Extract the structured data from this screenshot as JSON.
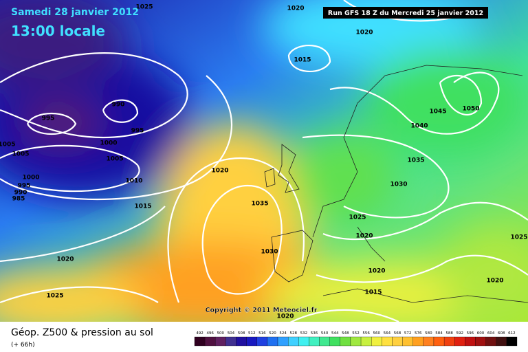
{
  "header": {
    "date": "Samedi 28 janvier 2012",
    "time": "13:00 locale",
    "run": "Run GFS 18 Z du Mercredi 25 janvier 2012"
  },
  "copyright": "Copyright © 2011 Meteociel.fr",
  "footer": {
    "title": "Géop. Z500 & pression au sol",
    "lead": "(+ 66h)"
  },
  "isobar_labels": [
    "1025",
    "1020",
    "1020",
    "1015",
    "990",
    "995",
    "995",
    "1005",
    "1005",
    "1000",
    "1005",
    "1020",
    "1000",
    "995",
    "990",
    "985",
    "1010",
    "1035",
    "1015",
    "1030",
    "1035",
    "1040",
    "1045",
    "1050",
    "1025",
    "1020",
    "1030",
    "1020",
    "1025",
    "1020",
    "1020",
    "1015",
    "1025",
    "1020"
  ],
  "legend": {
    "values": [
      "492",
      "496",
      "500",
      "504",
      "508",
      "512",
      "516",
      "520",
      "524",
      "528",
      "532",
      "536",
      "540",
      "544",
      "548",
      "552",
      "556",
      "560",
      "564",
      "568",
      "572",
      "576",
      "580",
      "584",
      "588",
      "592",
      "596",
      "600",
      "604",
      "608",
      "612"
    ]
  }
}
